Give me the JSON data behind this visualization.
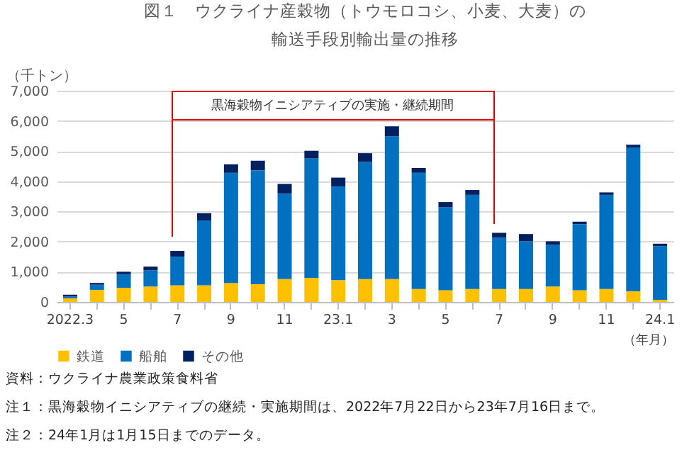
{
  "chart_data": {
    "type": "bar",
    "title": [
      "図１　ウクライナ産穀物（トウモロコシ、小麦、大麦）の",
      "輸送手段別輸出量の推移"
    ],
    "ylabel": "（千トン）",
    "xlabel": "（年月）",
    "stacked": true,
    "grid": "y",
    "legend": "bottom",
    "categories": [
      "2022.3",
      null,
      "5",
      null,
      "7",
      null,
      "9",
      null,
      "11",
      null,
      "23.1",
      null,
      "3",
      null,
      "5",
      null,
      "7",
      null,
      "9",
      null,
      "11",
      null,
      "24.1"
    ],
    "series": [
      {
        "name": "鉄道",
        "color": "#ffc000",
        "values": [
          120,
          400,
          470,
          510,
          550,
          550,
          630,
          590,
          760,
          800,
          720,
          760,
          760,
          430,
          390,
          430,
          430,
          430,
          510,
          390,
          430,
          350,
          70
        ]
      },
      {
        "name": "船舶",
        "color": "#0070c0",
        "values": [
          60,
          170,
          450,
          540,
          950,
          2150,
          3650,
          3770,
          2830,
          3960,
          3110,
          3880,
          4730,
          3850,
          2750,
          3120,
          1700,
          1580,
          1380,
          2190,
          3120,
          4770,
          1780
        ]
      },
      {
        "name": "その他",
        "color": "#002060",
        "values": [
          60,
          60,
          80,
          120,
          190,
          240,
          280,
          320,
          320,
          250,
          290,
          290,
          330,
          160,
          170,
          160,
          160,
          240,
          120,
          80,
          80,
          90,
          80
        ]
      }
    ],
    "ylim": [
      0,
      7000
    ],
    "yticks": [
      0,
      {
        "value": 1000,
        "label": "1,000"
      },
      {
        "value": 2000,
        "label": "2,000"
      },
      {
        "value": 3000,
        "label": "3,000"
      },
      {
        "value": 4000,
        "label": "4,000"
      },
      {
        "value": 5000,
        "label": "5,000"
      },
      {
        "value": 6000,
        "label": "6,000"
      },
      {
        "value": 7000,
        "label": "7,000"
      }
    ],
    "annotations": [
      "黒海穀物イニシアティブの実施・継続期間",
      "資料：ウクライナ農業政策食料省",
      "注１：黒海穀物イニシアティブの継続・実施期間は、2022年7月22日から23年7月16日まで。",
      "注２：24年1月は1月15日までのデータ。"
    ]
  }
}
